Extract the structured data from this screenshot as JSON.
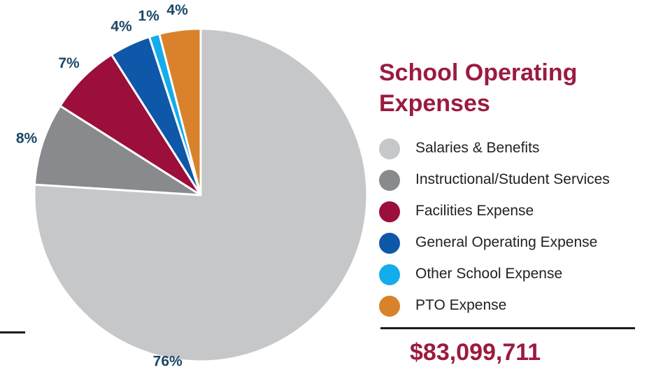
{
  "chart_data": {
    "type": "pie",
    "title": "School Operating Expenses",
    "categories": [
      "Salaries & Benefits",
      "Instructional/Student Services",
      "Facilities Expense",
      "General Operating Expense",
      "Other School Expense",
      "PTO Expense"
    ],
    "values": [
      76,
      8,
      7,
      4,
      1,
      4
    ],
    "labels": [
      "76%",
      "8%",
      "7%",
      "4%",
      "1%",
      "4%"
    ],
    "colors": [
      "#c6c7c9",
      "#898a8d",
      "#9b0f3a",
      "#0f57a8",
      "#14acea",
      "#d9822b"
    ],
    "label_color": "#1a4766",
    "legend_position": "right",
    "total": "$83,099,711"
  },
  "legend": {
    "items": [
      {
        "label": "Salaries & Benefits",
        "color": "#c6c7c9"
      },
      {
        "label": "Instructional/Student Services",
        "color": "#898a8d"
      },
      {
        "label": "Facilities Expense",
        "color": "#9b0f3a"
      },
      {
        "label": "General Operating Expense",
        "color": "#0f57a8"
      },
      {
        "label": "Other School Expense",
        "color": "#14acea"
      },
      {
        "label": "PTO Expense",
        "color": "#d9822b"
      }
    ]
  },
  "title": "School Operating Expenses",
  "total": "$83,099,711",
  "accent_color": "#9b1b3f"
}
